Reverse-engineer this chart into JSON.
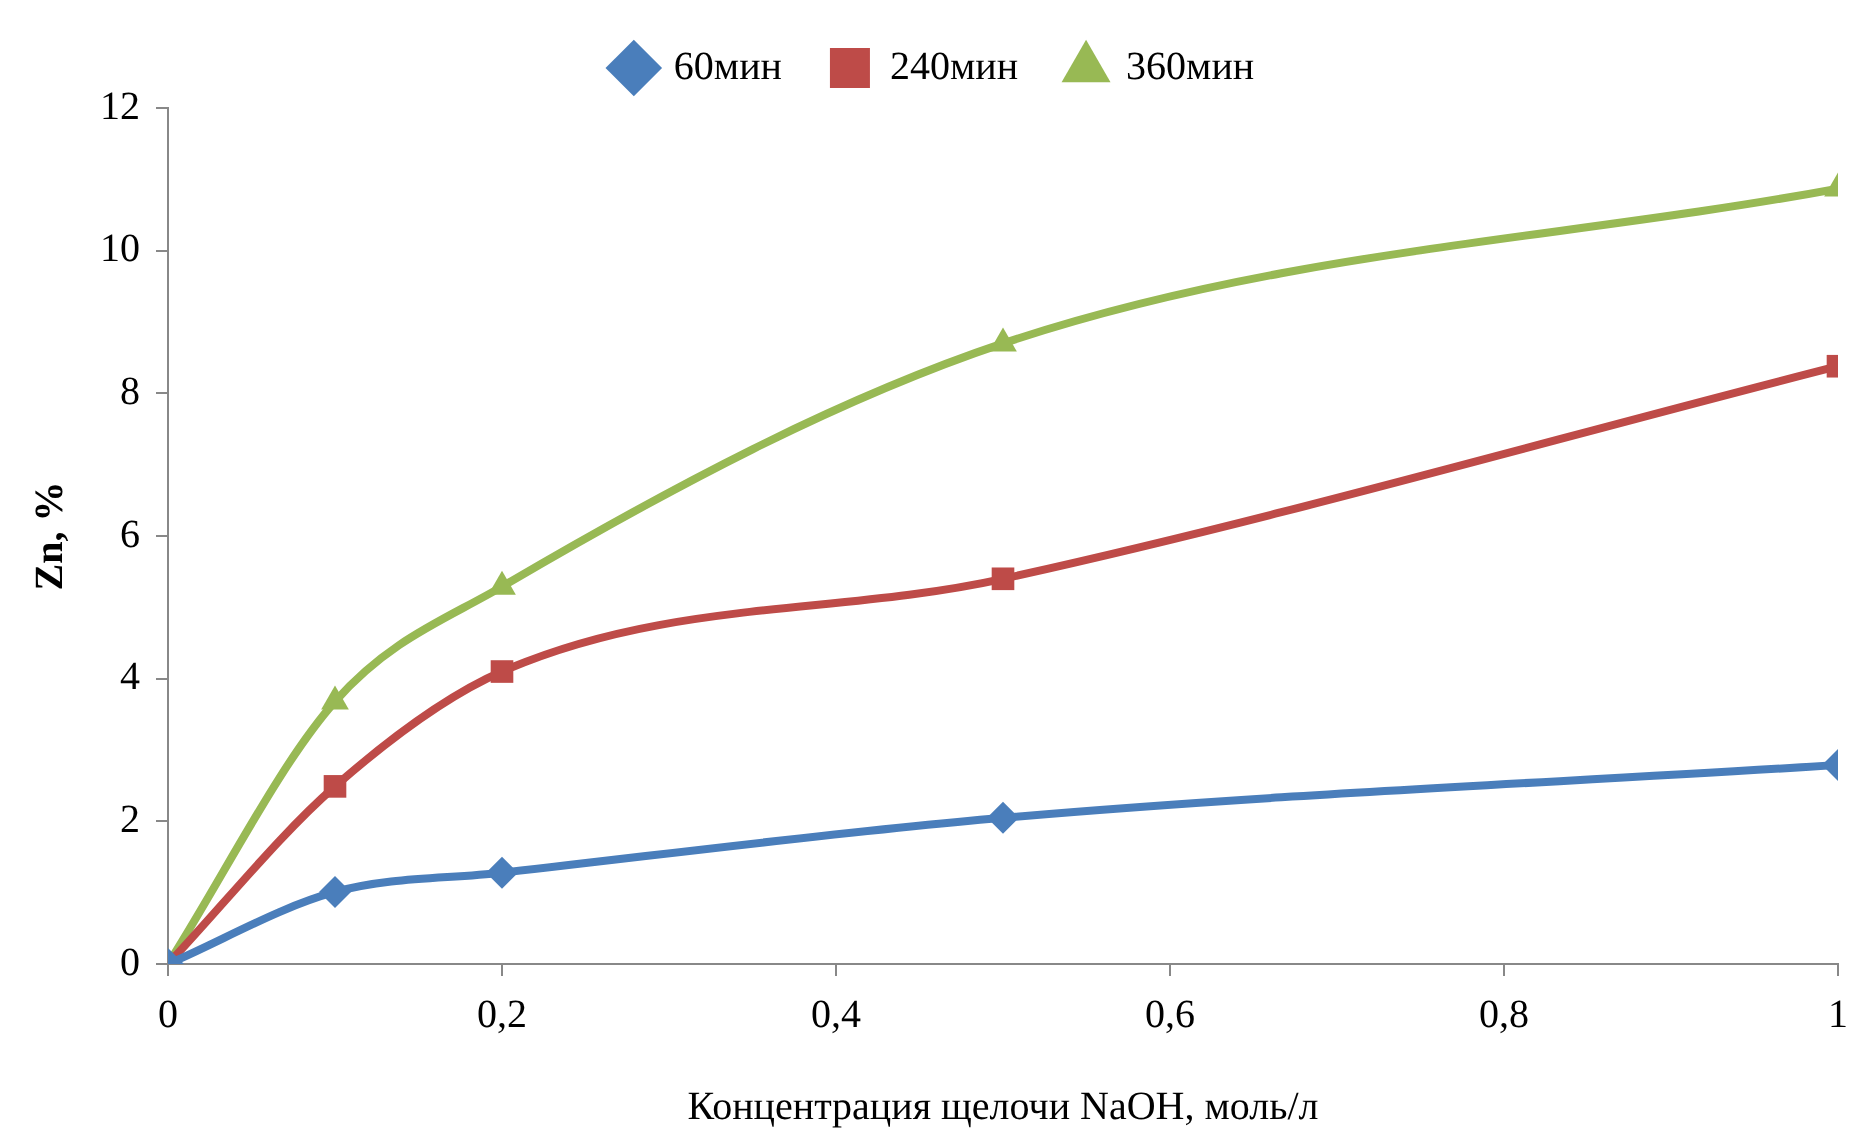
{
  "chart_data": {
    "type": "line",
    "xlabel": "Концентрация щелочи NaOH, моль/л",
    "ylabel": "Zn, %",
    "x": [
      0,
      0.1,
      0.2,
      0.5,
      1
    ],
    "series": [
      {
        "name": "60мин",
        "color": "#4a7ebb",
        "marker": "diamond",
        "values": [
          0,
          1.01,
          1.28,
          2.05,
          2.79
        ]
      },
      {
        "name": "240мин",
        "color": "#be4b48",
        "marker": "square",
        "values": [
          0,
          2.49,
          4.1,
          5.4,
          8.38
        ]
      },
      {
        "name": "360мин",
        "color": "#98b954",
        "marker": "triangle",
        "values": [
          0,
          3.68,
          5.29,
          8.7,
          10.87
        ]
      }
    ],
    "xlim": [
      0,
      1
    ],
    "xticks": [
      0,
      {
        "value": 0.2,
        "label": "0,2"
      },
      {
        "value": 0.4,
        "label": "0,4"
      },
      {
        "value": 0.6,
        "label": "0,6"
      },
      {
        "value": 0.8,
        "label": "0,8"
      },
      1
    ],
    "ylim": [
      0,
      12
    ],
    "yticks": [
      0,
      2,
      4,
      6,
      8,
      10,
      12
    ],
    "grid": false,
    "legend": "top",
    "line_style": "solid"
  }
}
